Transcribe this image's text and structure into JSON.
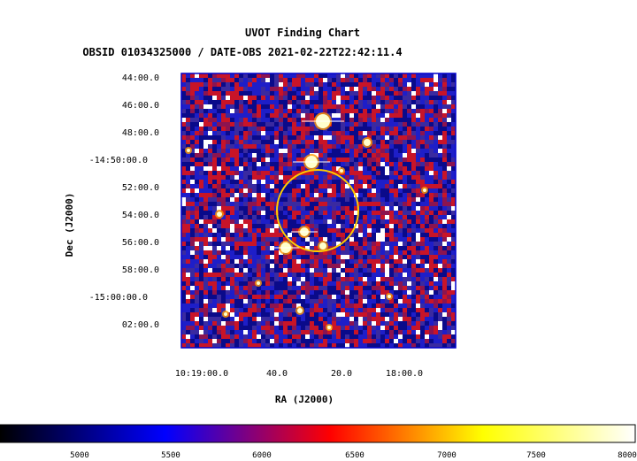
{
  "chart_data": {
    "type": "heatmap",
    "title": "UVOT Finding Chart",
    "subtitle": "OBSID 01034325000 / DATE-OBS 2021-02-22T22:42:11.4",
    "xlabel": "RA (J2000)",
    "ylabel": "Dec (J2000)",
    "x_ticks": [
      "10:19:00.0",
      "40.0",
      "20.0",
      "18:00.0"
    ],
    "y_ticks": [
      "44:00.0",
      "46:00.0",
      "48:00.0",
      "-14:50:00.0",
      "52:00.0",
      "54:00.0",
      "56:00.0",
      "58:00.0",
      "-15:00:00.0",
      "02:00.0"
    ],
    "colorbar": {
      "ticks": [
        "5000",
        "5500",
        "6000",
        "6500",
        "7000",
        "7500",
        "8000"
      ],
      "values": [
        5000,
        5500,
        6000,
        6500,
        7000,
        7500,
        8000
      ],
      "colormap": [
        "#000000",
        "#0000ff",
        "#ff0000",
        "#ffff00",
        "#ffffff"
      ]
    },
    "colors": {
      "frame": "#0000cc",
      "region": "#ffcc00",
      "noise": [
        "#0a0a8a",
        "#1e1ec8",
        "#3a2aa0",
        "#c81428",
        "#8c1450",
        "#ffffff"
      ]
    }
  }
}
